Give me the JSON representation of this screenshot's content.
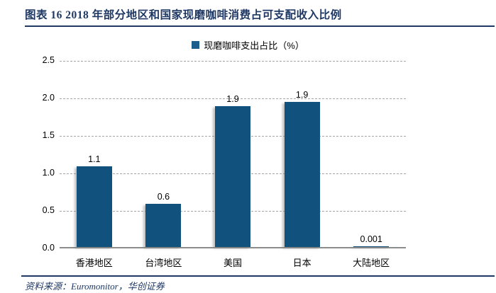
{
  "header": {
    "title": "图表 16  2018 年部分地区和国家现磨咖啡消费占可支配收入比例"
  },
  "legend": {
    "label": "现磨咖啡支出占比（%）"
  },
  "footer": {
    "source": "资料来源：Euromonitor，华创证券"
  },
  "colors": {
    "bar": "#11517D",
    "legend_marker": "#1B5E8E",
    "title_navy": "#1F3864",
    "gridline": "#A6A6A6",
    "axis_line": "#8C8C8C"
  },
  "chart_data": {
    "type": "bar",
    "title": "2018 年部分地区和国家现磨咖啡消费占可支配收入比例",
    "categories": [
      "香港地区",
      "台湾地区",
      "美国",
      "日本",
      "大陆地区"
    ],
    "values": [
      1.1,
      0.6,
      1.9,
      1.9,
      0.001
    ],
    "value_labels": [
      "1.1",
      "0.6",
      "1.9",
      "1.9",
      "0.001"
    ],
    "drawn_bar_heights": [
      1.08,
      0.58,
      1.88,
      1.93,
      0.012
    ],
    "series_name": "现磨咖啡支出占比（%）",
    "xlabel": "",
    "ylabel": "",
    "ylim": [
      0,
      2.5
    ],
    "yticks": [
      0.0,
      0.5,
      1.0,
      1.5,
      2.0,
      2.5
    ],
    "ytick_labels": [
      "0.0",
      "0.5",
      "1.0",
      "1.5",
      "2.0",
      "2.5"
    ],
    "grid": true,
    "gridline_style": "dashed",
    "legend_position": "top-center"
  }
}
